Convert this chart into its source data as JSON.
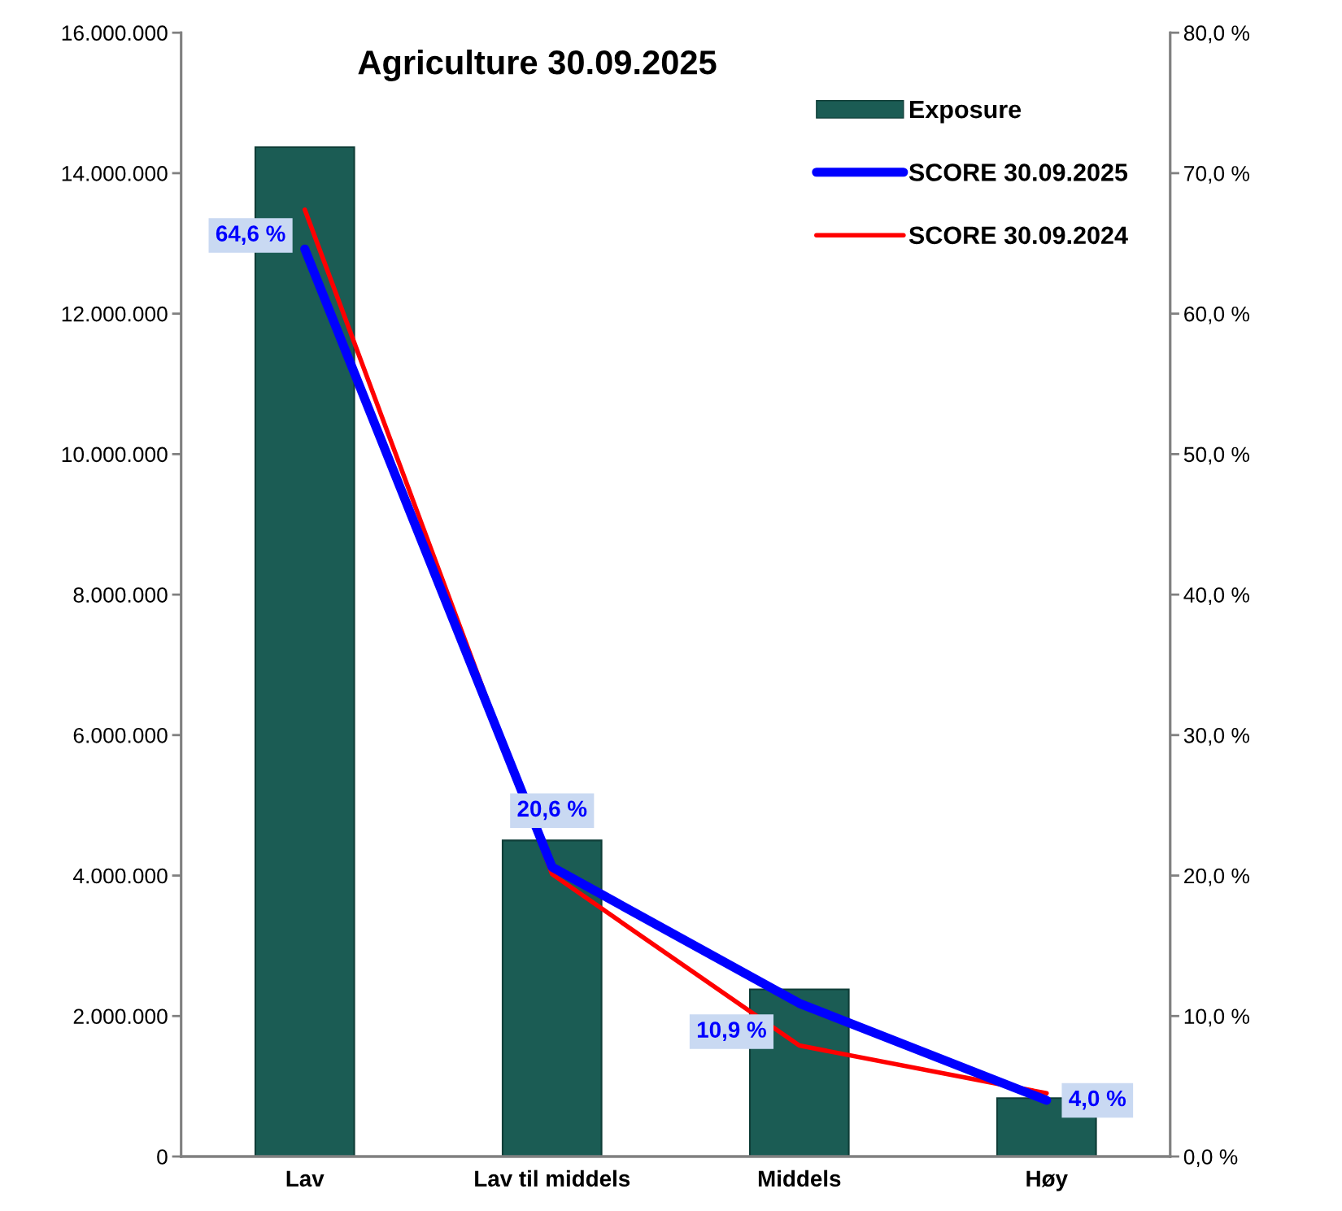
{
  "chart_data": {
    "type": "bar",
    "title": "Agriculture 30.09.2025",
    "categories": [
      "Lav",
      "Lav til middels",
      "Middels",
      "Høy"
    ],
    "series": [
      {
        "name": "Exposure",
        "color": "#1b5c54",
        "values": [
          14370000,
          4500000,
          2380000,
          830000
        ]
      },
      {
        "name": "SCORE 30.09.2025",
        "type": "line",
        "axis": "y2",
        "color": "#0000ff",
        "values": [
          64.6,
          20.6,
          10.9,
          4.0
        ],
        "value_labels": [
          "64,6 %",
          "20,6 %",
          "10,9 %",
          "4,0 %"
        ]
      },
      {
        "name": "SCORE 30.09.2024",
        "type": "line",
        "axis": "y2",
        "color": "#ff0000",
        "values": [
          67.4,
          20.1,
          7.9,
          4.5
        ]
      }
    ],
    "ylim": [
      0,
      16000000
    ],
    "yticks": [
      {
        "value": 0,
        "label": "0"
      },
      {
        "value": 2000000,
        "label": "2.000.000"
      },
      {
        "value": 4000000,
        "label": "4.000.000"
      },
      {
        "value": 6000000,
        "label": "6.000.000"
      },
      {
        "value": 8000000,
        "label": "8.000.000"
      },
      {
        "value": 10000000,
        "label": "10.000.000"
      },
      {
        "value": 12000000,
        "label": "12.000.000"
      },
      {
        "value": 14000000,
        "label": "14.000.000"
      },
      {
        "value": 16000000,
        "label": "16.000.000"
      }
    ],
    "y2lim": [
      0,
      80
    ],
    "y2ticks": [
      {
        "value": 0,
        "label": "0,0 %"
      },
      {
        "value": 10,
        "label": "10,0 %"
      },
      {
        "value": 20,
        "label": "20,0 %"
      },
      {
        "value": 30,
        "label": "30,0 %"
      },
      {
        "value": 40,
        "label": "40,0 %"
      },
      {
        "value": 50,
        "label": "50,0 %"
      },
      {
        "value": 60,
        "label": "60,0 %"
      },
      {
        "value": 70,
        "label": "70,0 %"
      },
      {
        "value": 80,
        "label": "80,0 %"
      }
    ],
    "grid": false,
    "legend": "top right"
  }
}
